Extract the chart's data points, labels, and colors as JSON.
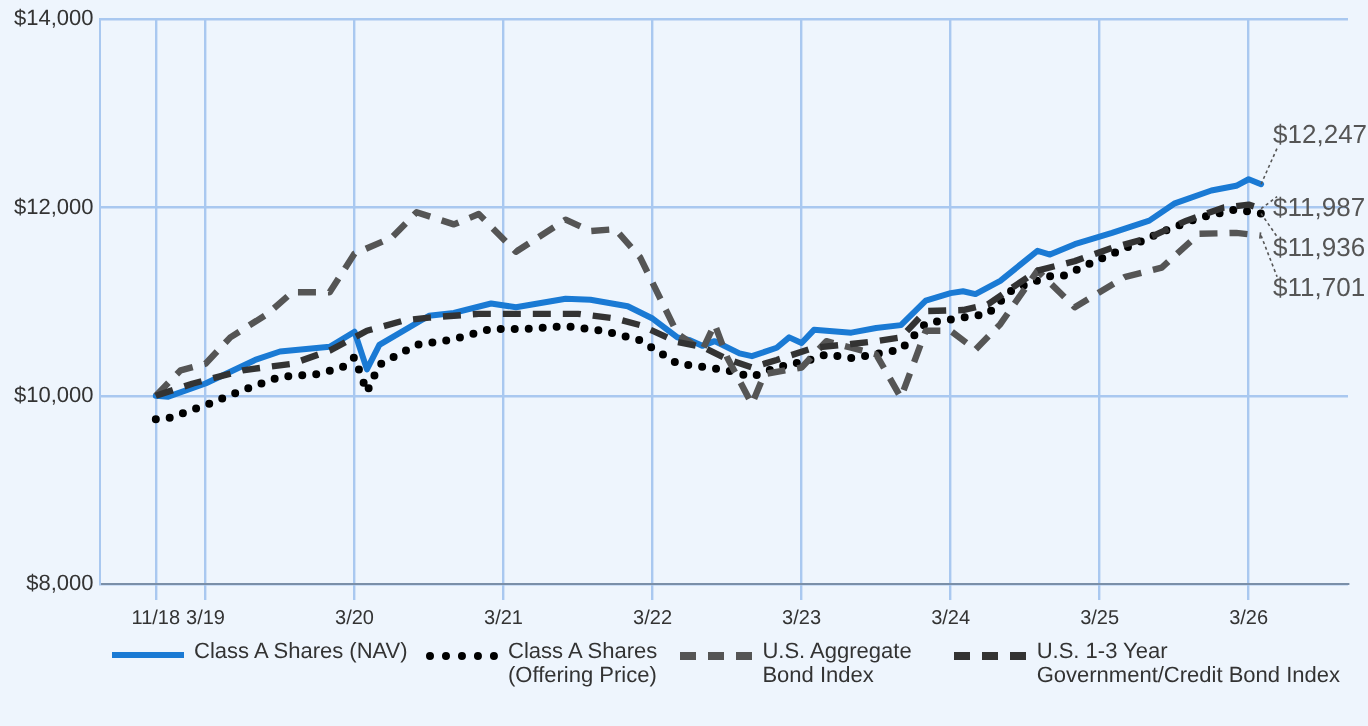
{
  "chart_data": {
    "type": "line",
    "xlim": [
      "2018-06-15",
      "2026-11"
    ],
    "ylim": [
      8000,
      14000
    ],
    "xticks": [
      {
        "value": "2018-11",
        "label": "11/18"
      },
      {
        "value": "2019-03",
        "label": "3/19"
      },
      {
        "value": "2020-03",
        "label": "3/20"
      },
      {
        "value": "2021-03",
        "label": "3/21"
      },
      {
        "value": "2022-03",
        "label": "3/22"
      },
      {
        "value": "2023-03",
        "label": "3/23"
      },
      {
        "value": "2024-03",
        "label": "3/24"
      },
      {
        "value": "2025-03",
        "label": "3/25"
      },
      {
        "value": "2026-03",
        "label": "3/26"
      }
    ],
    "yticks": [
      {
        "value": 8000,
        "label": "$8,000"
      },
      {
        "value": 10000,
        "label": "$10,000"
      },
      {
        "value": 12000,
        "label": "$12,000"
      },
      {
        "value": 14000,
        "label": "$14,000"
      }
    ],
    "grid": true,
    "legend": "bottom",
    "marker": "none",
    "series": [
      {
        "name": "Class A Shares (NAV)",
        "color": "#1a7ad4",
        "line_style": "solid",
        "x": [
          "2018-11",
          "2018-12",
          "2019-03",
          "2019-07",
          "2019-09",
          "2020-01",
          "2020-03",
          "2020-04",
          "2020-05",
          "2020-09",
          "2020-11",
          "2021-02",
          "2021-04",
          "2021-08",
          "2021-10",
          "2022-01",
          "2022-03",
          "2022-05",
          "2022-06",
          "2022-07",
          "2022-08",
          "2022-10",
          "2022-11",
          "2023-01",
          "2023-02",
          "2023-03",
          "2023-04",
          "2023-07",
          "2023-09",
          "2023-11",
          "2024-01",
          "2024-03",
          "2024-04",
          "2024-05",
          "2024-07",
          "2024-10",
          "2024-11",
          "2025-01",
          "2025-04",
          "2025-07",
          "2025-09",
          "2025-12",
          "2026-02",
          "2026-03",
          "2026-04"
        ],
        "values": [
          10000,
          9990,
          10130,
          10380,
          10470,
          10520,
          10680,
          10280,
          10540,
          10850,
          10880,
          10980,
          10940,
          11030,
          11020,
          10950,
          10820,
          10620,
          10590,
          10530,
          10580,
          10450,
          10420,
          10510,
          10620,
          10560,
          10700,
          10670,
          10720,
          10750,
          11010,
          11090,
          11110,
          11080,
          11220,
          11540,
          11500,
          11610,
          11730,
          11860,
          12040,
          12180,
          12230,
          12300,
          12247
        ]
      },
      {
        "name": "Class A Shares (Offering Price)",
        "color": "#000000",
        "line_style": "dotted",
        "x": [
          "2018-11",
          "2018-12",
          "2019-03",
          "2019-06",
          "2019-09",
          "2019-12",
          "2020-02",
          "2020-03",
          "2020-04",
          "2020-05",
          "2020-08",
          "2020-11",
          "2021-02",
          "2021-05",
          "2021-08",
          "2021-11",
          "2022-02",
          "2022-05",
          "2022-08",
          "2022-09",
          "2022-11",
          "2023-01",
          "2023-04",
          "2023-05",
          "2023-07",
          "2023-08",
          "2023-11",
          "2024-01",
          "2024-03",
          "2024-06",
          "2024-08",
          "2024-11",
          "2024-12",
          "2025-03",
          "2025-06",
          "2025-08",
          "2025-11",
          "2026-02",
          "2026-04"
        ],
        "values": [
          9750,
          9760,
          9900,
          10060,
          10200,
          10230,
          10300,
          10410,
          10040,
          10330,
          10540,
          10600,
          10710,
          10710,
          10740,
          10690,
          10590,
          10340,
          10290,
          10270,
          10200,
          10300,
          10390,
          10440,
          10400,
          10420,
          10490,
          10770,
          10810,
          10870,
          11130,
          11270,
          11270,
          11450,
          11620,
          11740,
          11890,
          11980,
          11936
        ]
      },
      {
        "name": "U.S. Aggregate Bond Index",
        "color": "#555555",
        "line_style": "dashed",
        "x": [
          "2018-11",
          "2019-01",
          "2019-03",
          "2019-05",
          "2019-08",
          "2019-10",
          "2020-01",
          "2020-03",
          "2020-06",
          "2020-08",
          "2020-11",
          "2021-01",
          "2021-04",
          "2021-08",
          "2021-10",
          "2021-12",
          "2022-02",
          "2022-05",
          "2022-07",
          "2022-08",
          "2022-09",
          "2022-11",
          "2022-12",
          "2023-03",
          "2023-05",
          "2023-07",
          "2023-09",
          "2023-11",
          "2024-01",
          "2024-03",
          "2024-05",
          "2024-07",
          "2024-10",
          "2025-01",
          "2025-05",
          "2025-08",
          "2025-11",
          "2026-02",
          "2026-04"
        ],
        "values": [
          10000,
          10270,
          10340,
          10620,
          10870,
          11100,
          11100,
          11510,
          11680,
          11950,
          11820,
          11930,
          11530,
          11870,
          11750,
          11770,
          11470,
          10660,
          10480,
          10760,
          10410,
          9910,
          10230,
          10300,
          10580,
          10510,
          10440,
          9980,
          10690,
          10690,
          10490,
          10760,
          11330,
          10940,
          11260,
          11360,
          11720,
          11730,
          11701
        ]
      },
      {
        "name": "U.S. 1-3 Year Government/Credit Bond Index",
        "color": "#333333",
        "line_style": "dashed",
        "x": [
          "2018-11",
          "2019-02",
          "2019-06",
          "2019-10",
          "2020-01",
          "2020-04",
          "2020-07",
          "2020-09",
          "2021-01",
          "2021-05",
          "2021-09",
          "2021-12",
          "2022-02",
          "2022-05",
          "2022-07",
          "2022-09",
          "2022-11",
          "2023-01",
          "2023-04",
          "2023-07",
          "2023-09",
          "2023-11",
          "2024-01",
          "2024-04",
          "2024-06",
          "2024-08",
          "2024-10",
          "2025-01",
          "2025-04",
          "2025-07",
          "2025-10",
          "2026-01",
          "2026-03",
          "2026-04"
        ],
        "values": [
          10000,
          10130,
          10270,
          10340,
          10480,
          10690,
          10800,
          10830,
          10870,
          10870,
          10870,
          10820,
          10750,
          10570,
          10520,
          10390,
          10300,
          10380,
          10510,
          10550,
          10580,
          10620,
          10900,
          10910,
          10970,
          11150,
          11330,
          11430,
          11570,
          11680,
          11860,
          12000,
          12030,
          11987
        ]
      }
    ],
    "annotations": [
      {
        "text": "$12,247",
        "x": "2026-04",
        "y": 12247
      },
      {
        "text": "$11,987",
        "x": "2026-04",
        "y": 11987
      },
      {
        "text": "$11,936",
        "x": "2026-04",
        "y": 11936
      },
      {
        "text": "$11,701",
        "x": "2026-04",
        "y": 11701
      }
    ]
  }
}
